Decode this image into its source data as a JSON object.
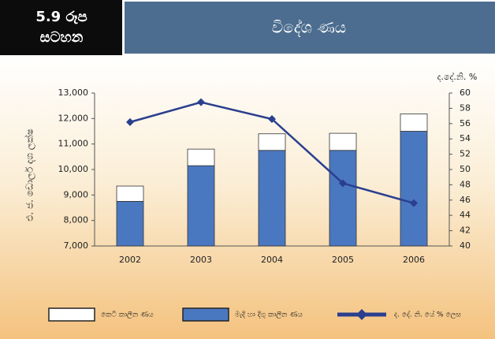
{
  "chart_data": {
    "type": "bar",
    "figure_label": [
      "5.9 රූප",
      "සටහන"
    ],
    "title": "විදේශ ණය",
    "ylabel": "එ. ජ. ඩොලර් දශ ලක්ෂ",
    "y2label": "ද.දේ.නි. %",
    "categories": [
      "2002",
      "2003",
      "2004",
      "2005",
      "2006"
    ],
    "series": [
      {
        "name": "කෙටි කාලීන ණය",
        "color": "#ffffff",
        "values": [
          600,
          650,
          650,
          670,
          680
        ]
      },
      {
        "name": "මැදි හා දිගු කාලීන ණය",
        "color": "#4a78c0",
        "values": [
          8750,
          10150,
          10750,
          10750,
          11500
        ]
      },
      {
        "name": "ද. දේ. නි. යේ % ලෙස",
        "color": "#2b3f8f",
        "type": "line",
        "axis": "y2",
        "values": [
          56.2,
          58.8,
          56.6,
          48.2,
          45.6
        ]
      }
    ],
    "stacked": true,
    "ylim": [
      7000,
      13000
    ],
    "yticks": [
      {
        "value": 7000,
        "label": "7,000"
      },
      {
        "value": 8000,
        "label": "8,000"
      },
      {
        "value": 9000,
        "label": "9,000"
      },
      {
        "value": 10000,
        "label": "10,000"
      },
      {
        "value": 11000,
        "label": "11,000"
      },
      {
        "value": 12000,
        "label": "12,000"
      },
      {
        "value": 13000,
        "label": "13,000"
      }
    ],
    "y2lim": [
      40,
      60
    ],
    "y2ticks": [
      40,
      42,
      44,
      46,
      48,
      50,
      52,
      54,
      56,
      58,
      60
    ]
  }
}
